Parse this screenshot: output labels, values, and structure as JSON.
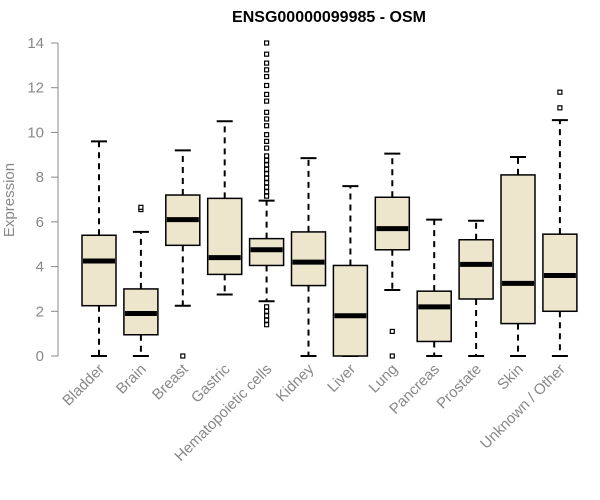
{
  "chart_data": {
    "type": "box",
    "title": "ENSG00000099985 - OSM",
    "xlabel": "",
    "ylabel": "Expression",
    "ylim": [
      0,
      14
    ],
    "yticks": [
      0,
      2,
      4,
      6,
      8,
      10,
      12,
      14
    ],
    "ytick_labels": [
      "0",
      "2",
      "4",
      "6",
      "8",
      "10",
      "12",
      "14"
    ],
    "colors": {
      "box_fill": "#ede6cc",
      "stroke": "#000000",
      "axis": "#888888"
    },
    "categories": [
      "Bladder",
      "Brain",
      "Breast",
      "Gastric",
      "Hematopoietic cells",
      "Kidney",
      "Liver",
      "Lung",
      "Pancreas",
      "Prostate",
      "Skin",
      "Unknown / Other"
    ],
    "boxes": [
      {
        "category": "Bladder",
        "whisker_low": 0,
        "q1": 2.25,
        "median": 4.25,
        "q3": 5.4,
        "whisker_high": 9.6,
        "outliers": []
      },
      {
        "category": "Brain",
        "whisker_low": 0,
        "q1": 0.95,
        "median": 1.9,
        "q3": 3.0,
        "whisker_high": 5.55,
        "outliers": [
          6.55,
          6.65
        ]
      },
      {
        "category": "Breast",
        "whisker_low": 2.25,
        "q1": 4.95,
        "median": 6.1,
        "q3": 7.2,
        "whisker_high": 9.2,
        "outliers": [
          0
        ]
      },
      {
        "category": "Gastric",
        "whisker_low": 2.75,
        "q1": 3.65,
        "median": 4.4,
        "q3": 7.05,
        "whisker_high": 10.5,
        "outliers": []
      },
      {
        "category": "Hematopoietic cells",
        "whisker_low": 2.45,
        "q1": 4.05,
        "median": 4.75,
        "q3": 5.25,
        "whisker_high": 6.95,
        "outliers": [
          1.4,
          1.6,
          1.8,
          2.0,
          2.2,
          7.15,
          7.35,
          7.55,
          7.75,
          7.95,
          8.15,
          8.35,
          8.55,
          8.75,
          8.95,
          9.3,
          9.6,
          9.9,
          10.3,
          10.6,
          10.9,
          11.4,
          11.7,
          12.1,
          12.5,
          12.8,
          13.1,
          13.5,
          14.0
        ]
      },
      {
        "category": "Kidney",
        "whisker_low": 0,
        "q1": 3.15,
        "median": 4.2,
        "q3": 5.55,
        "whisker_high": 8.85,
        "outliers": []
      },
      {
        "category": "Liver",
        "whisker_low": 0,
        "q1": 0,
        "median": 1.8,
        "q3": 4.05,
        "whisker_high": 7.6,
        "outliers": []
      },
      {
        "category": "Lung",
        "whisker_low": 2.95,
        "q1": 4.75,
        "median": 5.7,
        "q3": 7.1,
        "whisker_high": 9.05,
        "outliers": [
          1.1,
          0
        ]
      },
      {
        "category": "Pancreas",
        "whisker_low": 0,
        "q1": 0.65,
        "median": 2.2,
        "q3": 2.9,
        "whisker_high": 6.1,
        "outliers": []
      },
      {
        "category": "Prostate",
        "whisker_low": 0,
        "q1": 2.55,
        "median": 4.1,
        "q3": 5.2,
        "whisker_high": 6.05,
        "outliers": []
      },
      {
        "category": "Skin",
        "whisker_low": 0,
        "q1": 1.45,
        "median": 3.25,
        "q3": 8.1,
        "whisker_high": 8.9,
        "outliers": []
      },
      {
        "category": "Unknown / Other",
        "whisker_low": 0,
        "q1": 2.0,
        "median": 3.6,
        "q3": 5.45,
        "whisker_high": 10.55,
        "outliers": [
          11.1,
          11.8
        ]
      }
    ]
  }
}
